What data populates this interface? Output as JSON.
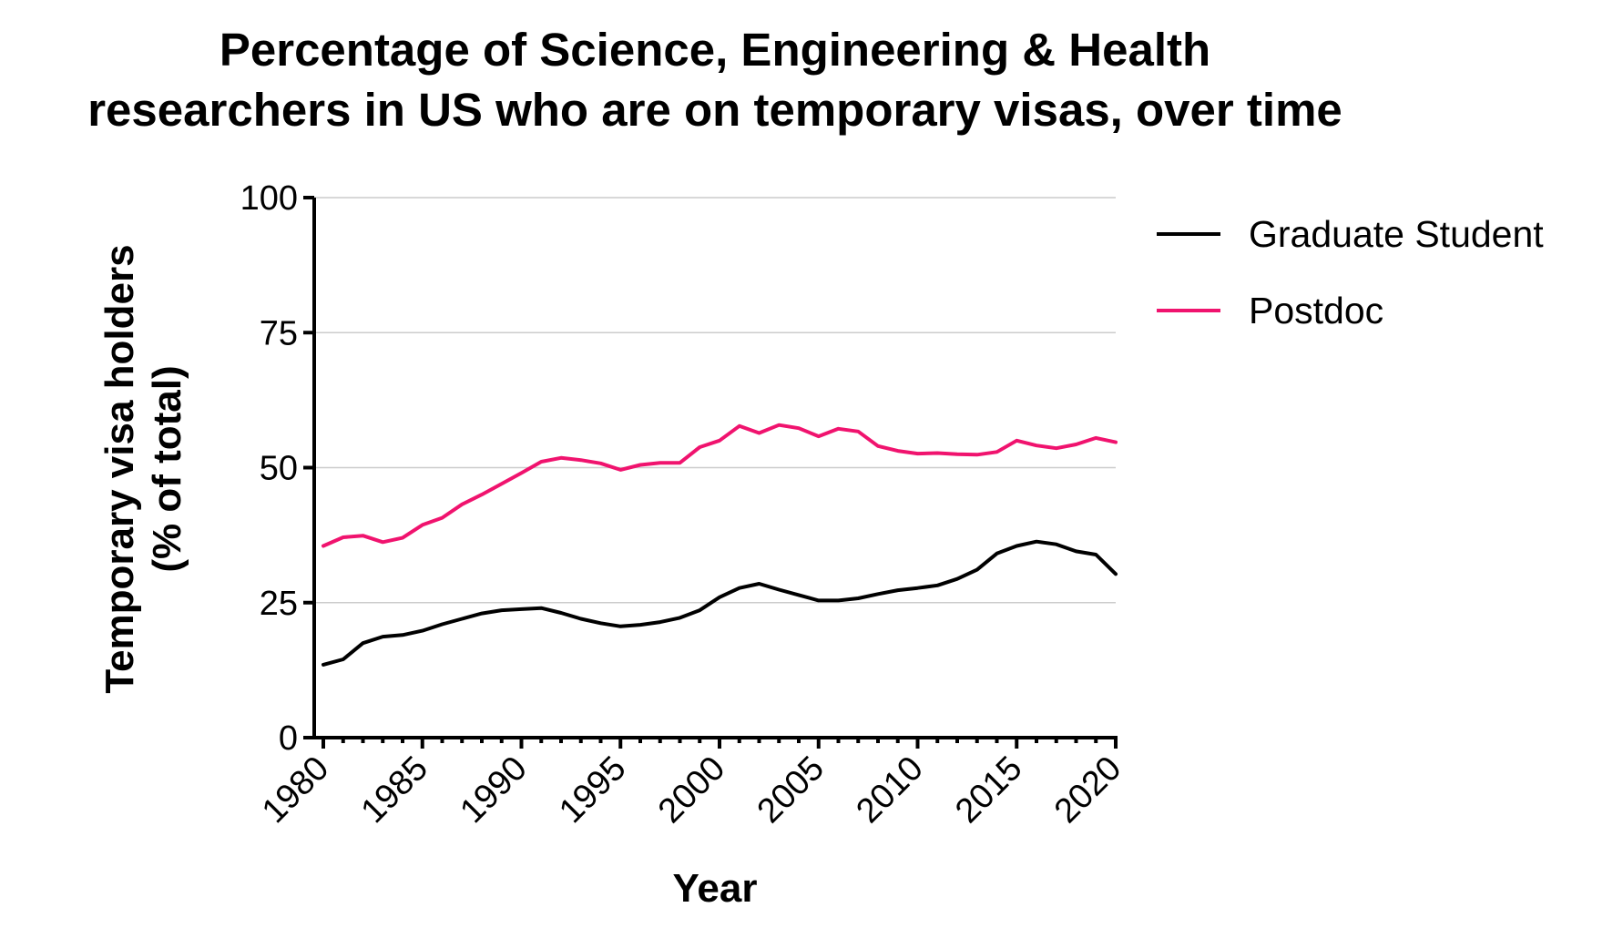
{
  "chart_data": {
    "type": "line",
    "title_lines": [
      "Percentage of Science, Engineering & Health",
      "researchers in US who are on temporary visas, over time"
    ],
    "xlabel": "Year",
    "ylabel_lines": [
      "Temporary visa holders",
      "(% of total)"
    ],
    "xlim": [
      1980,
      2020
    ],
    "ylim": [
      0,
      100
    ],
    "x_ticks": [
      "1980",
      "1985",
      "1990",
      "1995",
      "2000",
      "2005",
      "2010",
      "2015",
      "2020"
    ],
    "y_ticks": [
      "0",
      "25",
      "50",
      "75",
      "100"
    ],
    "grid": "horizontal",
    "legend_position": "right",
    "x": [
      1980,
      1981,
      1982,
      1983,
      1984,
      1985,
      1986,
      1987,
      1988,
      1989,
      1990,
      1991,
      1992,
      1993,
      1994,
      1995,
      1996,
      1997,
      1998,
      1999,
      2000,
      2001,
      2002,
      2003,
      2004,
      2005,
      2006,
      2007,
      2008,
      2009,
      2010,
      2011,
      2012,
      2013,
      2014,
      2015,
      2016,
      2017,
      2018,
      2019,
      2020
    ],
    "series": [
      {
        "name": "Graduate Student",
        "color": "#000000",
        "values": [
          13.5,
          14.5,
          17.5,
          18.7,
          19,
          19.8,
          21,
          22,
          23,
          23.6,
          23.8,
          24,
          23.1,
          22,
          21.2,
          20.6,
          20.9,
          21.4,
          22.2,
          23.6,
          26,
          27.7,
          28.5,
          27.4,
          26.4,
          25.4,
          25.4,
          25.8,
          26.6,
          27.3,
          27.7,
          28.2,
          29.4,
          31.1,
          34.1,
          35.5,
          36.3,
          35.8,
          34.5,
          33.9,
          30.3
        ]
      },
      {
        "name": "Postdoc",
        "color": "#f0136e",
        "values": [
          35.5,
          37.1,
          37.4,
          36.2,
          37,
          39.4,
          40.7,
          43.2,
          45,
          47,
          49,
          51.1,
          51.8,
          51.4,
          50.8,
          49.6,
          50.5,
          50.9,
          50.9,
          53.8,
          55,
          57.7,
          56.4,
          57.9,
          57.3,
          55.8,
          57.2,
          56.7,
          54,
          53.1,
          52.6,
          52.7,
          52.5,
          52.4,
          52.9,
          55,
          54.1,
          53.6,
          54.3,
          55.5,
          54.7
        ]
      }
    ]
  }
}
